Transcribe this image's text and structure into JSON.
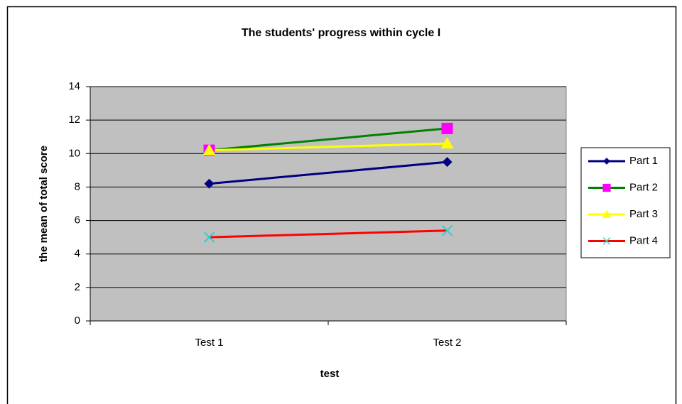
{
  "chart_data": {
    "type": "line",
    "title": "The students' progress within cycle I",
    "x_label": "test",
    "y_label": "the mean of total score",
    "categories": [
      "Test 1",
      "Test 2"
    ],
    "series": [
      {
        "name": "Part 1",
        "color": "#000080",
        "marker_color": "#000080",
        "marker": "diamond",
        "values": [
          8.2,
          9.5
        ]
      },
      {
        "name": "Part 2",
        "color": "#008000",
        "marker_color": "#ff00ff",
        "marker": "square",
        "values": [
          10.2,
          11.5
        ]
      },
      {
        "name": "Part 3",
        "color": "#ffff00",
        "marker_color": "#ffff00",
        "marker": "triangle",
        "values": [
          10.2,
          10.6
        ]
      },
      {
        "name": "Part 4",
        "color": "#ff0000",
        "marker_color": "#33cccc",
        "marker": "x",
        "values": [
          5.0,
          5.4
        ]
      }
    ],
    "ylim": [
      0,
      14
    ],
    "yticks": [
      0,
      2,
      4,
      6,
      8,
      10,
      12,
      14
    ],
    "grid": true,
    "plot_background": "#c0c0c0",
    "legend": "right"
  }
}
